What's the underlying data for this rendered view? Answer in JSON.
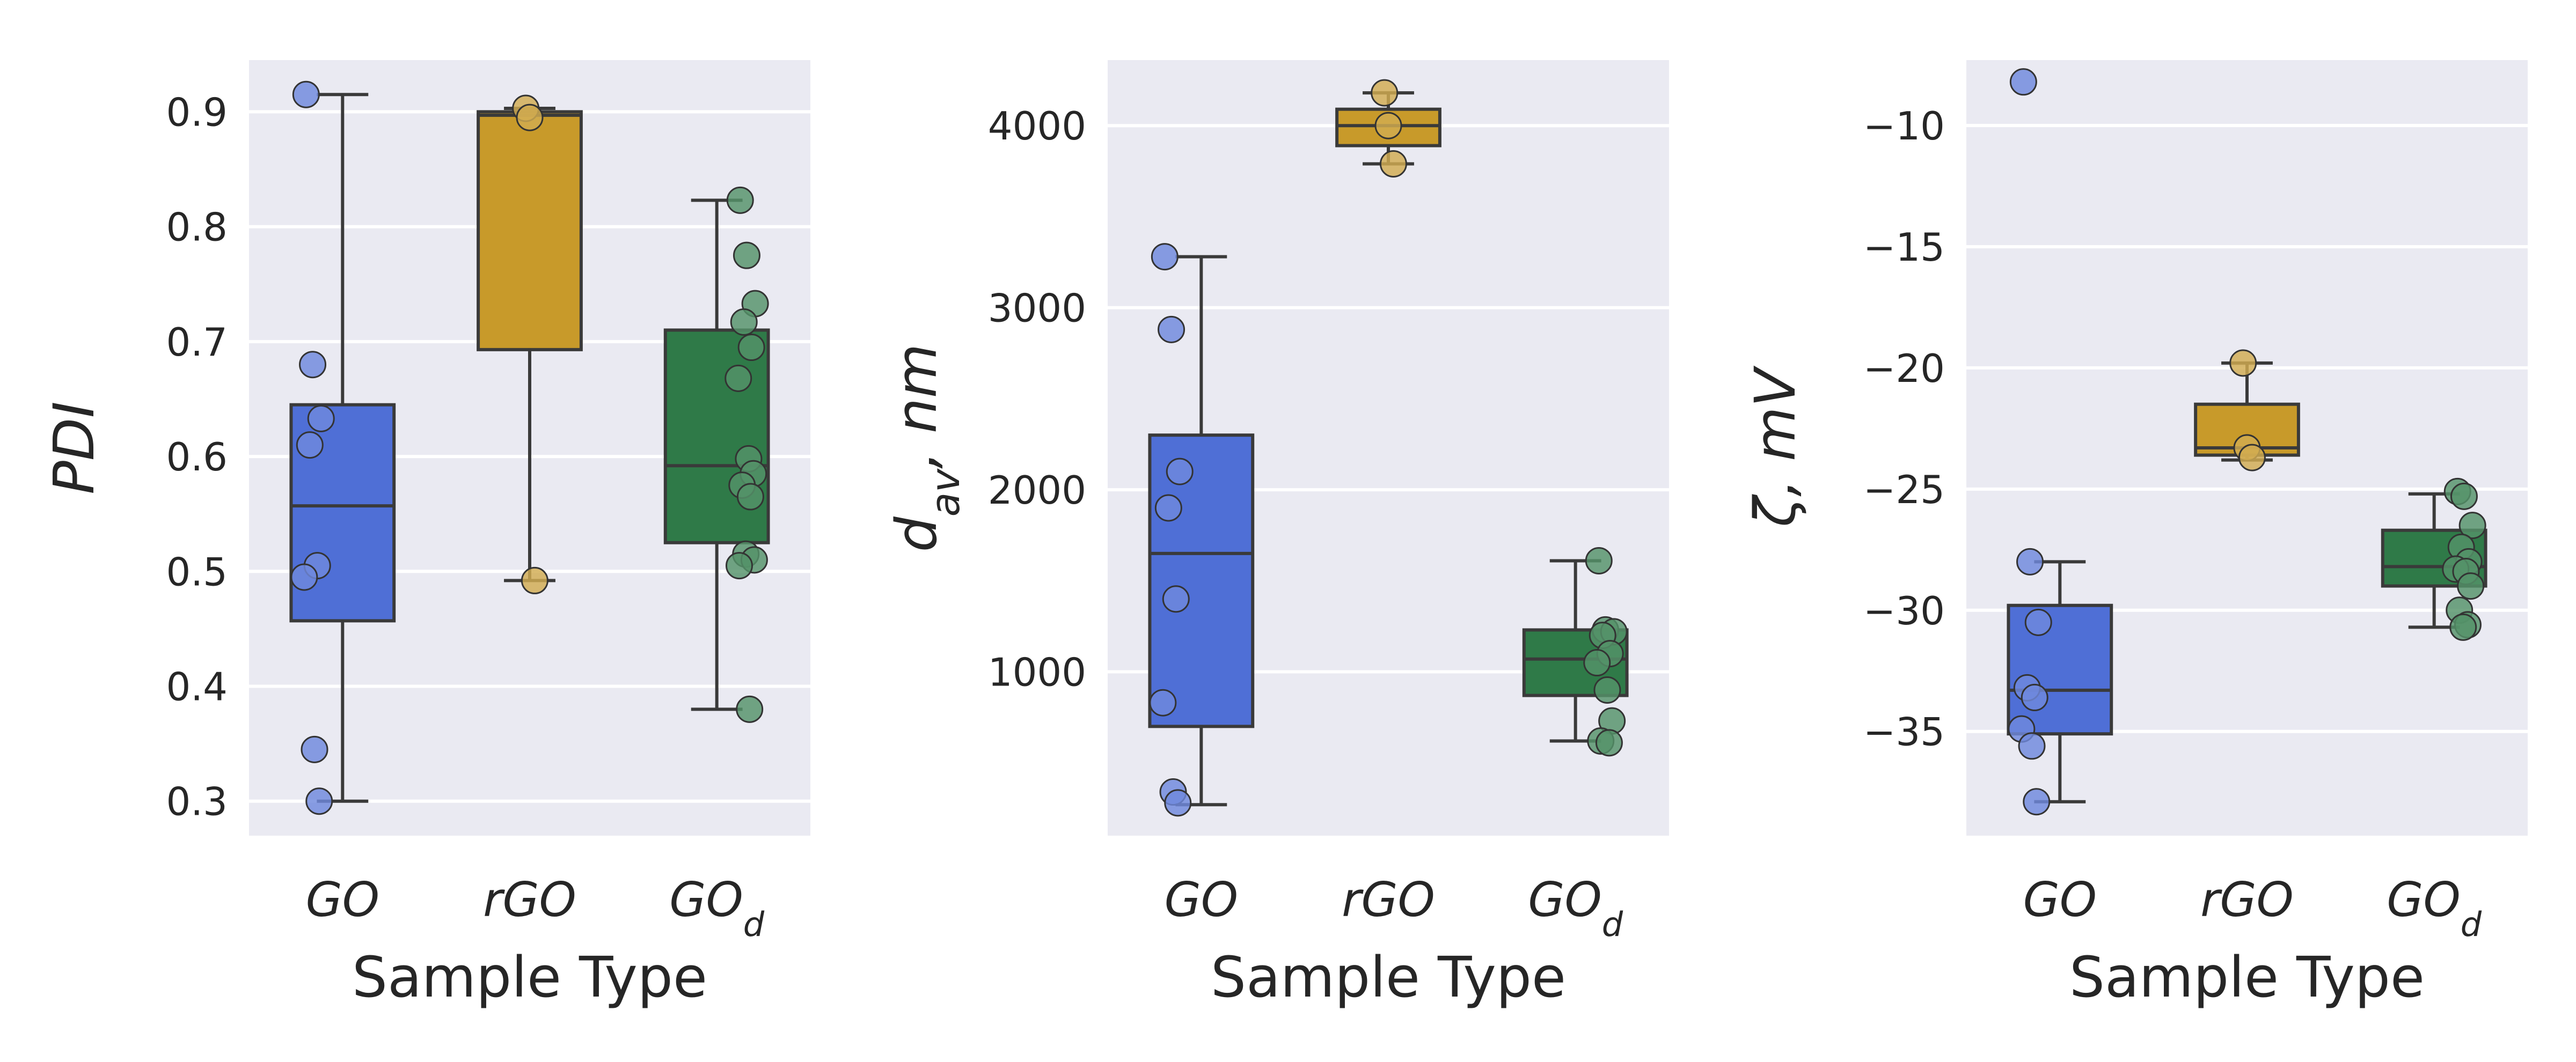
{
  "chart_data": [
    {
      "type": "box",
      "xlabel": "Sample Type",
      "ylabel": {
        "base": "PDI",
        "sub": "",
        "rest": ""
      },
      "categories": [
        {
          "base": "GO",
          "sub": "",
          "color": "#4f6fd6"
        },
        {
          "base": "rGO",
          "sub": "",
          "color": "#c89a2a"
        },
        {
          "base": "GO",
          "sub": "d",
          "color": "#2f7a48"
        }
      ],
      "yticks": [
        0.3,
        0.4,
        0.5,
        0.6,
        0.7,
        0.8,
        0.9
      ],
      "ylim": [
        0.27,
        0.945
      ],
      "grid": true,
      "series": [
        {
          "q1": 0.457,
          "median": 0.557,
          "q3": 0.645,
          "whisker_low": 0.3,
          "whisker_high": 0.915,
          "points": [
            0.915,
            0.68,
            0.633,
            0.61,
            0.505,
            0.495,
            0.345,
            0.3
          ]
        },
        {
          "q1": 0.693,
          "median": 0.897,
          "q3": 0.9,
          "whisker_low": 0.492,
          "whisker_high": 0.903,
          "points": [
            0.903,
            0.895,
            0.492
          ]
        },
        {
          "q1": 0.525,
          "median": 0.592,
          "q3": 0.71,
          "whisker_low": 0.38,
          "whisker_high": 0.823,
          "points": [
            0.823,
            0.775,
            0.733,
            0.717,
            0.695,
            0.668,
            0.598,
            0.585,
            0.575,
            0.565,
            0.515,
            0.51,
            0.505,
            0.38
          ]
        }
      ]
    },
    {
      "type": "box",
      "xlabel": "Sample Type",
      "ylabel": {
        "base": "d",
        "sub": "av",
        "rest": ", nm"
      },
      "categories": [
        {
          "base": "GO",
          "sub": "",
          "color": "#4f6fd6"
        },
        {
          "base": "rGO",
          "sub": "",
          "color": "#c89a2a"
        },
        {
          "base": "GO",
          "sub": "d",
          "color": "#2f7a48"
        }
      ],
      "yticks": [
        1000,
        2000,
        3000,
        4000
      ],
      "ylim": [
        100,
        4360
      ],
      "grid": true,
      "series": [
        {
          "q1": 700,
          "median": 1650,
          "q3": 2300,
          "whisker_low": 270,
          "whisker_high": 3280,
          "points": [
            3280,
            2880,
            2100,
            1900,
            1400,
            830,
            340,
            280
          ]
        },
        {
          "q1": 3890,
          "median": 4000,
          "q3": 4090,
          "whisker_low": 3790,
          "whisker_high": 4180,
          "points": [
            4180,
            4000,
            3790
          ]
        },
        {
          "q1": 870,
          "median": 1070,
          "q3": 1230,
          "whisker_low": 620,
          "whisker_high": 1610,
          "points": [
            1610,
            1230,
            1220,
            1200,
            1100,
            1050,
            900,
            730,
            620,
            610
          ]
        }
      ]
    },
    {
      "type": "box",
      "xlabel": "Sample Type",
      "ylabel": {
        "base": "ζ, mV",
        "sub": "",
        "rest": ""
      },
      "categories": [
        {
          "base": "GO",
          "sub": "",
          "color": "#4f6fd6"
        },
        {
          "base": "rGO",
          "sub": "",
          "color": "#c89a2a"
        },
        {
          "base": "GO",
          "sub": "d",
          "color": "#2f7a48"
        }
      ],
      "yticks": [
        -35,
        -30,
        -25,
        -20,
        -15,
        -10
      ],
      "ylim": [
        -39.3,
        -7.3
      ],
      "grid": true,
      "series": [
        {
          "q1": -35.1,
          "median": -33.3,
          "q3": -29.8,
          "whisker_low": -37.9,
          "whisker_high": -28.0,
          "points": [
            -8.2,
            -28.0,
            -30.5,
            -33.2,
            -33.6,
            -34.9,
            -35.6,
            -37.9
          ]
        },
        {
          "q1": -23.6,
          "median": -23.3,
          "q3": -21.5,
          "whisker_low": -23.8,
          "whisker_high": -19.8,
          "points": [
            -19.8,
            -23.3,
            -23.7
          ]
        },
        {
          "q1": -29.0,
          "median": -28.2,
          "q3": -26.7,
          "whisker_low": -30.7,
          "whisker_high": -25.2,
          "points": [
            -25.1,
            -25.3,
            -26.5,
            -27.4,
            -28.0,
            -28.3,
            -28.4,
            -29.0,
            -30.0,
            -30.6,
            -30.7
          ]
        }
      ]
    }
  ]
}
